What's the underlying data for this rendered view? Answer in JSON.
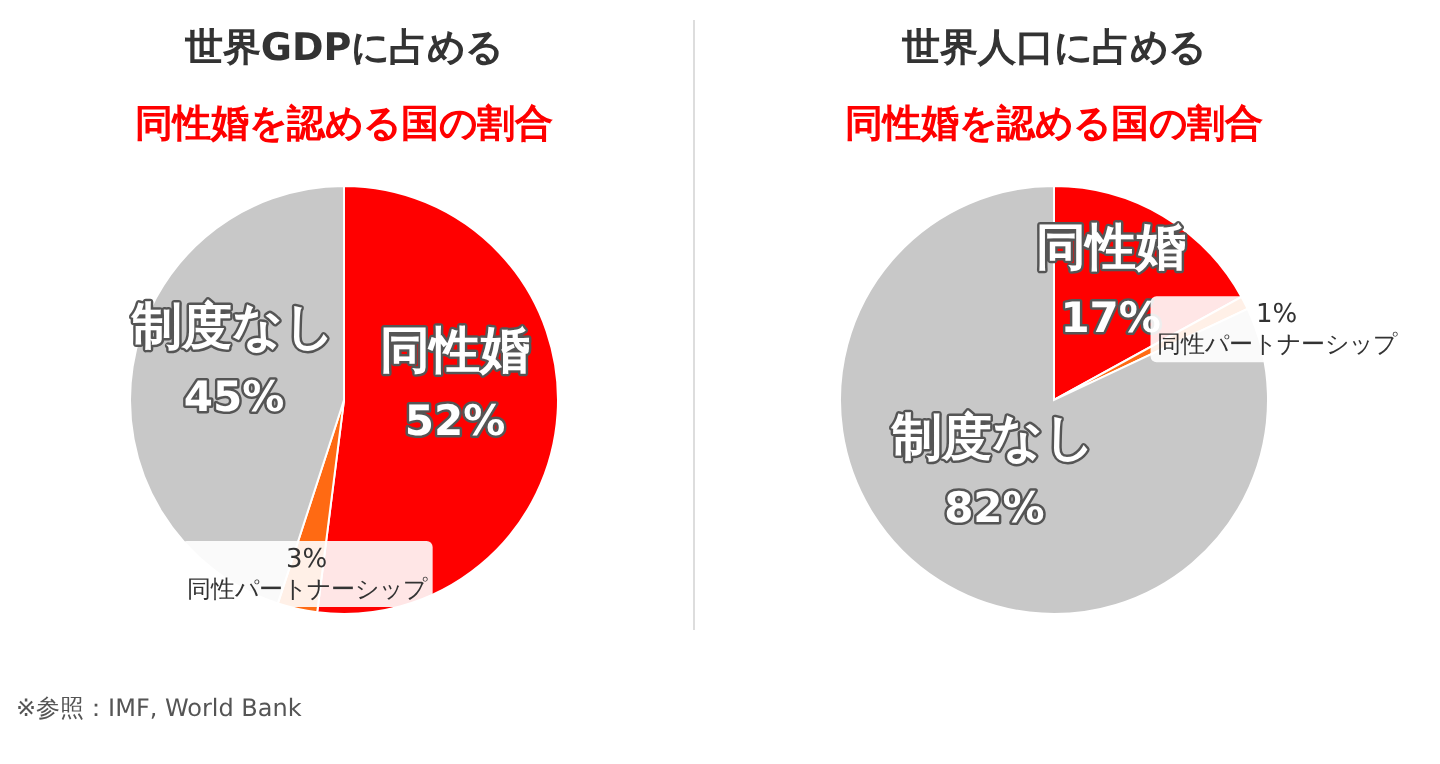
{
  "chart_data": [
    {
      "type": "pie",
      "title": "世界GDPに占める",
      "subtitle": "同性婚を認める国の割合",
      "categories": [
        "同性婚",
        "同性パートナーシップ",
        "制度なし"
      ],
      "values": [
        52,
        3,
        45
      ],
      "colors": [
        "#ff0000",
        "#ff6a13",
        "#c8c8c8"
      ],
      "value_labels": [
        "52%",
        "3%",
        "45%"
      ],
      "annotations": [
        "※参照：IMF, World Bank"
      ]
    },
    {
      "type": "pie",
      "title": "世界人口に占める",
      "subtitle": "同性婚を認める国の割合",
      "categories": [
        "同性婚",
        "同性パートナーシップ",
        "制度なし"
      ],
      "values": [
        17,
        1,
        82
      ],
      "colors": [
        "#ff0000",
        "#ff6a13",
        "#c8c8c8"
      ],
      "value_labels": [
        "17%",
        "1%",
        "82%"
      ]
    }
  ]
}
